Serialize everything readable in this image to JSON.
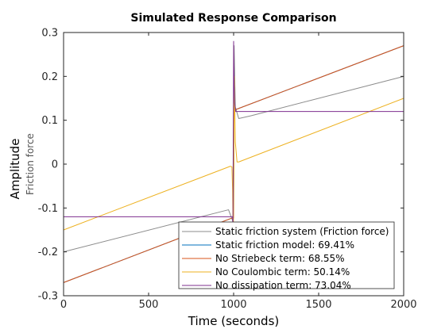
{
  "chart_data": {
    "type": "line",
    "title": "Simulated Response Comparison",
    "xlabel": "Time (seconds)",
    "ylabel": "Amplitude",
    "ysublabel": "Friction force",
    "xlim": [
      0,
      2000
    ],
    "ylim": [
      -0.3,
      0.3
    ],
    "xticks": [
      0,
      500,
      1000,
      1500,
      2000
    ],
    "xtick_labels": [
      "0",
      "500",
      "1000",
      "1500",
      "2000"
    ],
    "yticks": [
      -0.3,
      -0.2,
      -0.1,
      0,
      0.1,
      0.2,
      0.3
    ],
    "ytick_labels": [
      "-0.3",
      "-0.2",
      "-0.1",
      "0",
      "0.1",
      "0.2",
      "0.3"
    ],
    "grid": false,
    "legend_position": "bottom-right",
    "series": [
      {
        "name": "Static friction system (Friction force)",
        "color": "#8c8c8c",
        "x": [
          0,
          970,
          995,
          1003,
          1010,
          1030,
          1100,
          2000
        ],
        "y": [
          -0.2,
          -0.104,
          -0.13,
          0.27,
          0.13,
          0.104,
          0.11,
          0.2
        ]
      },
      {
        "name": "Static friction model: 69.41%",
        "color": "#0072bd",
        "x": [
          0,
          990,
          1000,
          1002,
          1010,
          2000
        ],
        "y": [
          -0.27,
          -0.123,
          -0.123,
          0.125,
          0.124,
          0.27
        ]
      },
      {
        "name": "No Striebeck term: 68.55%",
        "color": "#d95319",
        "x": [
          0,
          990,
          1000,
          1002,
          1010,
          2000
        ],
        "y": [
          -0.27,
          -0.123,
          -0.123,
          0.125,
          0.124,
          0.27
        ]
      },
      {
        "name": "No Coulombic term: 50.14%",
        "color": "#edb120",
        "x": [
          0,
          980,
          990,
          994,
          998,
          1004,
          1010,
          1020,
          1030,
          2000
        ],
        "y": [
          -0.15,
          -0.005,
          -0.006,
          -0.06,
          -0.2,
          0.2,
          0.05,
          0.005,
          0.005,
          0.15
        ]
      },
      {
        "name": "No dissipation term: 73.04%",
        "color": "#7e2f8e",
        "x": [
          0,
          994,
          996,
          1000,
          1003,
          1006,
          1012,
          2000
        ],
        "y": [
          -0.12,
          -0.12,
          -0.15,
          0.28,
          0.18,
          0.14,
          0.12,
          0.12
        ]
      }
    ]
  }
}
